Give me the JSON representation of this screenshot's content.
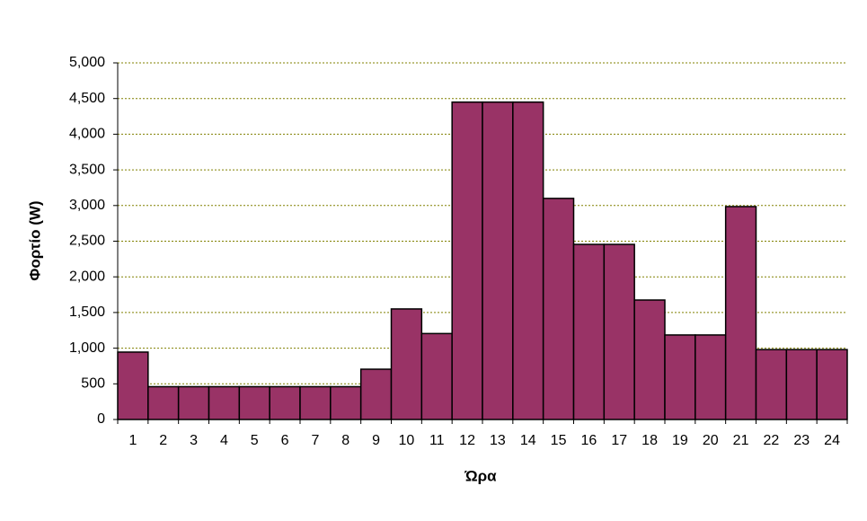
{
  "chart_data": {
    "type": "bar",
    "x_label": "Ώρα",
    "y_label": "Φορτίο (W)",
    "categories": [
      "1",
      "2",
      "3",
      "4",
      "5",
      "6",
      "7",
      "8",
      "9",
      "10",
      "11",
      "12",
      "13",
      "14",
      "15",
      "16",
      "17",
      "18",
      "19",
      "20",
      "21",
      "22",
      "23",
      "24"
    ],
    "values": [
      945,
      460,
      460,
      460,
      460,
      460,
      460,
      460,
      705,
      1550,
      1205,
      4450,
      4450,
      4450,
      3100,
      2455,
      2455,
      1675,
      1185,
      1185,
      2985,
      980,
      980,
      980
    ],
    "color": "#993366",
    "ylim": [
      0,
      5000
    ],
    "yticks": [
      0,
      500,
      {
        "value": 1000,
        "label": "1,000"
      },
      {
        "value": 1500,
        "label": "1,500"
      },
      {
        "value": 2000,
        "label": "2,000"
      },
      {
        "value": 2500,
        "label": "2,500"
      },
      {
        "value": 3000,
        "label": "3,000"
      },
      {
        "value": 3500,
        "label": "3,500"
      },
      {
        "value": 4000,
        "label": "4,000"
      },
      {
        "value": 4500,
        "label": "4,500"
      },
      {
        "value": 5000,
        "label": "5,000"
      }
    ],
    "grid": true
  }
}
